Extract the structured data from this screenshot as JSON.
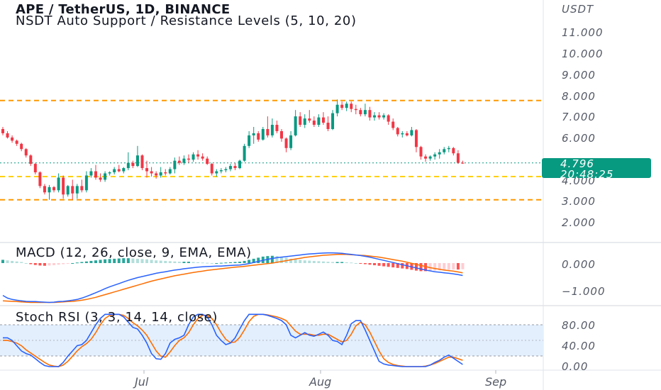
{
  "header": {
    "title": "APE / TetherUS, 1D, BINANCE",
    "indicator": "NSDT Auto Support / Resistance Levels (5, 10, 20)"
  },
  "price_axis": {
    "currency": "USDT",
    "labels": [
      "11.000",
      "10.000",
      "9.000",
      "8.000",
      "7.000",
      "6.000",
      "4.000",
      "3.000",
      "2.000"
    ],
    "last_price": "4.796",
    "countdown": "20:48:25"
  },
  "macd_panel": {
    "title": "MACD (12, 26, close, 9, EMA, EMA)",
    "labels": [
      "0.000",
      "−1.000"
    ]
  },
  "stoch_panel": {
    "title": "Stoch RSI (3, 3, 14, 14, close)",
    "labels": [
      "80.00",
      "40.00",
      "0.00"
    ]
  },
  "time_axis": {
    "labels": [
      "Jul",
      "Aug",
      "Sep"
    ]
  },
  "colors": {
    "up": "#089981",
    "down": "#f23645",
    "level": "#ff9800",
    "level_light": "#ffd000",
    "macd_line": "#2962ff",
    "signal_line": "#ff6d00",
    "stoch_band": "#e3effd"
  },
  "chart_data": {
    "type": "candlestick",
    "pair": "APE / TetherUS",
    "interval": "1D",
    "exchange": "BINANCE",
    "ylim": [
      1.5,
      12.0
    ],
    "levels": [
      7.75,
      4.15,
      3.05
    ],
    "last_price": 4.796,
    "candles_ohlc": [
      [
        6.4,
        6.5,
        6.1,
        6.2
      ],
      [
        6.2,
        6.3,
        5.95,
        6.0
      ],
      [
        6.0,
        6.1,
        5.75,
        5.85
      ],
      [
        5.85,
        5.9,
        5.6,
        5.7
      ],
      [
        5.7,
        5.75,
        5.35,
        5.45
      ],
      [
        5.45,
        5.5,
        5.05,
        5.15
      ],
      [
        5.15,
        5.2,
        4.65,
        4.75
      ],
      [
        4.75,
        4.8,
        4.25,
        4.35
      ],
      [
        4.35,
        4.4,
        3.6,
        3.7
      ],
      [
        3.7,
        3.8,
        3.3,
        3.4
      ],
      [
        3.4,
        3.75,
        3.05,
        3.65
      ],
      [
        3.65,
        3.7,
        3.4,
        3.5
      ],
      [
        3.5,
        4.3,
        3.4,
        4.1
      ],
      [
        4.1,
        4.2,
        3.1,
        3.3
      ],
      [
        3.3,
        3.75,
        3.2,
        3.7
      ],
      [
        3.7,
        4.0,
        3.05,
        3.35
      ],
      [
        3.35,
        3.8,
        3.1,
        3.7
      ],
      [
        3.7,
        4.0,
        3.4,
        3.5
      ],
      [
        3.5,
        4.4,
        3.4,
        4.2
      ],
      [
        4.2,
        4.55,
        4.1,
        4.4
      ],
      [
        4.4,
        4.7,
        4.0,
        4.1
      ],
      [
        4.1,
        4.3,
        3.9,
        4.0
      ],
      [
        4.0,
        4.4,
        3.9,
        4.3
      ],
      [
        4.3,
        4.4,
        4.2,
        4.35
      ],
      [
        4.35,
        4.6,
        4.25,
        4.5
      ],
      [
        4.5,
        4.7,
        4.35,
        4.4
      ],
      [
        4.4,
        4.6,
        4.3,
        4.55
      ],
      [
        4.55,
        5.3,
        4.45,
        4.8
      ],
      [
        4.8,
        4.9,
        4.55,
        4.65
      ],
      [
        4.65,
        5.6,
        4.6,
        5.15
      ],
      [
        5.15,
        5.2,
        4.45,
        4.55
      ],
      [
        4.55,
        4.9,
        4.1,
        4.4
      ],
      [
        4.4,
        4.6,
        4.15,
        4.3
      ],
      [
        4.3,
        4.4,
        4.05,
        4.2
      ],
      [
        4.2,
        4.6,
        4.1,
        4.35
      ],
      [
        4.35,
        4.5,
        4.2,
        4.3
      ],
      [
        4.3,
        4.6,
        4.25,
        4.5
      ],
      [
        4.5,
        5.05,
        4.3,
        4.9
      ],
      [
        4.9,
        5.1,
        4.7,
        4.8
      ],
      [
        4.8,
        5.15,
        4.7,
        5.0
      ],
      [
        5.0,
        5.2,
        4.8,
        4.95
      ],
      [
        4.95,
        5.3,
        4.85,
        5.2
      ],
      [
        5.2,
        5.4,
        4.95,
        5.1
      ],
      [
        5.1,
        5.25,
        4.9,
        5.0
      ],
      [
        5.0,
        5.1,
        4.7,
        4.75
      ],
      [
        4.75,
        4.8,
        4.2,
        4.3
      ],
      [
        4.3,
        4.5,
        4.15,
        4.4
      ],
      [
        4.4,
        4.55,
        4.3,
        4.45
      ],
      [
        4.45,
        4.6,
        4.35,
        4.5
      ],
      [
        4.5,
        4.75,
        4.4,
        4.65
      ],
      [
        4.65,
        4.8,
        4.45,
        4.55
      ],
      [
        4.55,
        4.95,
        4.5,
        4.9
      ],
      [
        4.9,
        5.7,
        4.85,
        5.6
      ],
      [
        5.6,
        6.3,
        5.5,
        6.1
      ],
      [
        6.1,
        6.5,
        5.7,
        6.2
      ],
      [
        6.2,
        6.3,
        5.8,
        5.9
      ],
      [
        5.9,
        6.5,
        5.85,
        6.4
      ],
      [
        6.4,
        7.0,
        6.0,
        6.1
      ],
      [
        6.1,
        6.9,
        6.0,
        6.6
      ],
      [
        6.6,
        6.8,
        6.2,
        6.3
      ],
      [
        6.3,
        6.4,
        5.8,
        5.95
      ],
      [
        5.95,
        6.0,
        5.3,
        5.5
      ],
      [
        5.5,
        6.3,
        5.4,
        6.1
      ],
      [
        6.1,
        7.3,
        6.05,
        7.0
      ],
      [
        7.0,
        7.2,
        6.5,
        6.6
      ],
      [
        6.6,
        7.1,
        6.45,
        6.9
      ],
      [
        6.9,
        7.3,
        6.7,
        6.8
      ],
      [
        6.8,
        7.0,
        6.5,
        6.6
      ],
      [
        6.6,
        7.1,
        6.5,
        6.95
      ],
      [
        6.95,
        7.2,
        6.6,
        6.7
      ],
      [
        6.7,
        7.0,
        6.3,
        6.4
      ],
      [
        6.4,
        7.3,
        6.35,
        7.15
      ],
      [
        7.15,
        7.8,
        7.0,
        7.55
      ],
      [
        7.55,
        7.7,
        7.3,
        7.4
      ],
      [
        7.4,
        7.7,
        7.25,
        7.6
      ],
      [
        7.6,
        7.7,
        7.2,
        7.35
      ],
      [
        7.35,
        7.55,
        7.1,
        7.3
      ],
      [
        7.3,
        7.4,
        7.0,
        7.1
      ],
      [
        7.1,
        7.6,
        7.0,
        7.3
      ],
      [
        7.3,
        7.45,
        6.8,
        6.95
      ],
      [
        6.95,
        7.2,
        6.8,
        7.05
      ],
      [
        7.05,
        7.2,
        6.85,
        6.95
      ],
      [
        6.95,
        7.15,
        6.85,
        7.05
      ],
      [
        7.05,
        7.1,
        6.6,
        6.75
      ],
      [
        6.75,
        6.9,
        6.35,
        6.45
      ],
      [
        6.45,
        6.5,
        6.05,
        6.15
      ],
      [
        6.15,
        6.3,
        6.0,
        6.2
      ],
      [
        6.2,
        6.3,
        6.05,
        6.1
      ],
      [
        6.1,
        6.5,
        6.05,
        6.35
      ],
      [
        6.35,
        6.4,
        5.3,
        5.55
      ],
      [
        5.55,
        5.6,
        4.95,
        5.1
      ],
      [
        5.1,
        5.2,
        4.85,
        5.0
      ],
      [
        5.0,
        5.15,
        4.9,
        5.1
      ],
      [
        5.1,
        5.3,
        4.95,
        5.2
      ],
      [
        5.2,
        5.45,
        5.0,
        5.3
      ],
      [
        5.3,
        5.55,
        5.2,
        5.45
      ],
      [
        5.45,
        5.6,
        5.3,
        5.5
      ],
      [
        5.5,
        5.55,
        5.15,
        5.25
      ],
      [
        5.25,
        5.4,
        4.75,
        4.8
      ],
      [
        4.8,
        4.9,
        4.75,
        4.796
      ]
    ],
    "macd": {
      "histogram": [
        0.12,
        0.1,
        0.08,
        0.06,
        0.04,
        0.0,
        -0.04,
        -0.07,
        -0.09,
        -0.1,
        -0.09,
        -0.08,
        -0.06,
        -0.04,
        -0.02,
        0.0,
        0.02,
        0.04,
        0.06,
        0.08,
        0.1,
        0.12,
        0.14,
        0.15,
        0.16,
        0.17,
        0.18,
        0.18,
        0.17,
        0.16,
        0.15,
        0.14,
        0.12,
        0.1,
        0.09,
        0.08,
        0.07,
        0.06,
        0.05,
        0.05,
        0.05,
        0.04,
        0.03,
        0.02,
        0.01,
        0.0,
        0.0,
        0.01,
        0.02,
        0.03,
        0.04,
        0.05,
        0.08,
        0.12,
        0.16,
        0.2,
        0.24,
        0.26,
        0.27,
        0.26,
        0.24,
        0.2,
        0.16,
        0.14,
        0.12,
        0.1,
        0.09,
        0.08,
        0.07,
        0.06,
        0.05,
        0.04,
        0.04,
        0.04,
        0.03,
        0.02,
        0.0,
        -0.02,
        -0.04,
        -0.06,
        -0.08,
        -0.1,
        -0.12,
        -0.14,
        -0.16,
        -0.18,
        -0.2,
        -0.22,
        -0.25,
        -0.28,
        -0.3,
        -0.3,
        -0.29,
        -0.28,
        -0.27,
        -0.26,
        -0.25,
        -0.24,
        -0.24,
        -0.23
      ],
      "macd_line": [
        -1.2,
        -1.3,
        -1.35,
        -1.38,
        -1.4,
        -1.42,
        -1.43,
        -1.43,
        -1.44,
        -1.45,
        -1.46,
        -1.45,
        -1.43,
        -1.42,
        -1.4,
        -1.38,
        -1.35,
        -1.3,
        -1.24,
        -1.17,
        -1.1,
        -1.03,
        -0.95,
        -0.88,
        -0.82,
        -0.76,
        -0.7,
        -0.64,
        -0.59,
        -0.54,
        -0.5,
        -0.46,
        -0.42,
        -0.38,
        -0.35,
        -0.32,
        -0.29,
        -0.26,
        -0.24,
        -0.21,
        -0.19,
        -0.17,
        -0.15,
        -0.14,
        -0.13,
        -0.12,
        -0.11,
        -0.11,
        -0.1,
        -0.09,
        -0.08,
        -0.07,
        -0.05,
        -0.02,
        0.02,
        0.06,
        0.1,
        0.14,
        0.17,
        0.2,
        0.22,
        0.24,
        0.26,
        0.28,
        0.3,
        0.32,
        0.34,
        0.35,
        0.36,
        0.37,
        0.38,
        0.38,
        0.37,
        0.36,
        0.34,
        0.32,
        0.3,
        0.28,
        0.25,
        0.22,
        0.18,
        0.14,
        0.1,
        0.06,
        0.02,
        -0.02,
        -0.06,
        -0.1,
        -0.14,
        -0.18,
        -0.22,
        -0.26,
        -0.29,
        -0.32,
        -0.34,
        -0.36,
        -0.38,
        -0.4,
        -0.43,
        -0.46
      ],
      "signal_line": [
        -1.4,
        -1.41,
        -1.42,
        -1.43,
        -1.44,
        -1.45,
        -1.46,
        -1.46,
        -1.46,
        -1.46,
        -1.46,
        -1.46,
        -1.45,
        -1.44,
        -1.43,
        -1.42,
        -1.4,
        -1.38,
        -1.35,
        -1.31,
        -1.27,
        -1.22,
        -1.17,
        -1.12,
        -1.07,
        -1.02,
        -0.97,
        -0.92,
        -0.87,
        -0.82,
        -0.77,
        -0.72,
        -0.67,
        -0.63,
        -0.59,
        -0.55,
        -0.51,
        -0.47,
        -0.44,
        -0.41,
        -0.38,
        -0.35,
        -0.32,
        -0.3,
        -0.27,
        -0.25,
        -0.23,
        -0.21,
        -0.19,
        -0.17,
        -0.15,
        -0.14,
        -0.12,
        -0.1,
        -0.08,
        -0.06,
        -0.04,
        -0.02,
        0.0,
        0.03,
        0.06,
        0.09,
        0.12,
        0.15,
        0.18,
        0.21,
        0.23,
        0.25,
        0.27,
        0.29,
        0.3,
        0.31,
        0.32,
        0.32,
        0.32,
        0.31,
        0.3,
        0.29,
        0.28,
        0.26,
        0.24,
        0.22,
        0.19,
        0.16,
        0.13,
        0.1,
        0.07,
        0.03,
        -0.01,
        -0.05,
        -0.09,
        -0.13,
        -0.17,
        -0.2,
        -0.23,
        -0.26,
        -0.28,
        -0.3,
        -0.33,
        -0.36
      ]
    },
    "stoch_rsi": {
      "k": [
        55,
        55,
        50,
        40,
        30,
        25,
        22,
        15,
        8,
        2,
        0,
        0,
        0,
        8,
        20,
        30,
        40,
        42,
        50,
        65,
        80,
        92,
        100,
        100,
        100,
        100,
        95,
        85,
        75,
        72,
        60,
        45,
        25,
        15,
        14,
        25,
        45,
        52,
        55,
        60,
        80,
        95,
        100,
        100,
        95,
        80,
        60,
        50,
        42,
        45,
        55,
        72,
        88,
        100,
        100,
        100,
        100,
        98,
        95,
        92,
        88,
        80,
        60,
        55,
        60,
        65,
        60,
        58,
        62,
        66,
        60,
        50,
        48,
        42,
        60,
        82,
        88,
        88,
        70,
        50,
        30,
        10,
        5,
        3,
        2,
        1,
        0,
        0,
        0,
        0,
        0,
        0,
        3,
        8,
        12,
        18,
        22,
        16,
        10,
        4
      ],
      "d": [
        50,
        50,
        48,
        45,
        40,
        32,
        26,
        20,
        14,
        8,
        3,
        1,
        0,
        3,
        10,
        20,
        30,
        38,
        44,
        52,
        65,
        80,
        92,
        98,
        100,
        100,
        98,
        92,
        84,
        78,
        70,
        60,
        45,
        30,
        20,
        18,
        28,
        40,
        50,
        55,
        65,
        80,
        92,
        98,
        98,
        92,
        80,
        65,
        52,
        46,
        47,
        56,
        70,
        86,
        96,
        100,
        100,
        99,
        97,
        95,
        92,
        88,
        78,
        68,
        62,
        62,
        62,
        60,
        60,
        62,
        62,
        57,
        52,
        47,
        50,
        62,
        78,
        85,
        80,
        66,
        48,
        30,
        15,
        8,
        4,
        2,
        1,
        0,
        0,
        0,
        0,
        1,
        3,
        6,
        10,
        14,
        18,
        18,
        15,
        12
      ]
    }
  }
}
